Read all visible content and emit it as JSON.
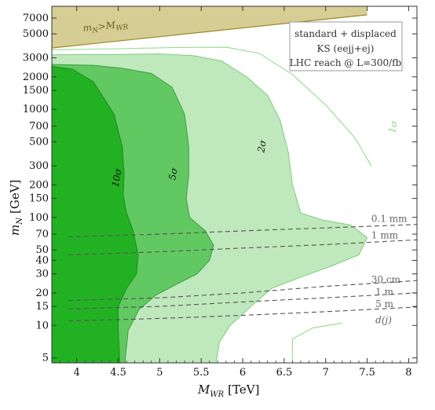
{
  "chart_data": {
    "type": "area",
    "xlabel": "M_WR [TeV]",
    "ylabel": "m_N [GeV]",
    "xlabel_main": "M",
    "xlabel_sub": "WR",
    "xlabel_unit": "[TeV]",
    "ylabel_main": "m",
    "ylabel_sub": "N",
    "ylabel_unit": "[GeV]",
    "xlim": [
      3.7,
      8.1
    ],
    "ylim": [
      4.5,
      9000
    ],
    "y_scale": "log",
    "x_ticks": [
      4,
      4.5,
      5,
      5.5,
      6,
      6.5,
      7,
      7.5,
      8
    ],
    "x_tick_labels": [
      "4",
      "4.5",
      "5",
      "5.5",
      "6",
      "6.5",
      "7",
      "7.5",
      "8"
    ],
    "y_ticks": [
      5,
      10,
      15,
      20,
      30,
      40,
      50,
      70,
      100,
      150,
      200,
      300,
      500,
      700,
      1000,
      1500,
      2000,
      3000,
      5000,
      7000
    ],
    "y_tick_labels": [
      "5",
      "10",
      "15",
      "20",
      "30",
      "40",
      "50",
      "70",
      "100",
      "150",
      "200",
      "300",
      "500",
      "700",
      "1000",
      "1500",
      "2000",
      "3000",
      "5000",
      "7000"
    ],
    "legend": {
      "position": "top-right",
      "lines": [
        "standard + displaced",
        "KS (eejj+ej)",
        "LHC reach @ L=300/fb"
      ]
    },
    "excluded_region": {
      "label": "m_N>M_WR",
      "label_main": "m",
      "label_sub": "N",
      "label_gt": ">M",
      "label_sub2": "WR",
      "color": "#d6cd95",
      "edge_color": "#9a8a2a",
      "boundary": [
        [
          3.7,
          3700
        ],
        [
          7.5,
          7500
        ]
      ]
    },
    "series": [
      {
        "name": "1σ",
        "color": "#9ddd9b",
        "fill": "none",
        "upper": [
          [
            3.7,
            3560
          ],
          [
            4.5,
            3640
          ],
          [
            5.2,
            3740
          ],
          [
            5.8,
            3760
          ],
          [
            6.2,
            3300
          ],
          [
            6.6,
            2100
          ],
          [
            7.0,
            1100
          ],
          [
            7.35,
            550
          ],
          [
            7.55,
            300
          ]
        ],
        "lower": [
          [
            6.6,
            4.6
          ],
          [
            6.6,
            7.5
          ],
          [
            6.85,
            9.5
          ],
          [
            7.2,
            10.5
          ]
        ]
      },
      {
        "name": "2σ",
        "color": "#bfe8bc",
        "edge": "#7fcf7c",
        "boundary": [
          [
            3.7,
            3200
          ],
          [
            4.5,
            3230
          ],
          [
            5.0,
            3260
          ],
          [
            5.4,
            3150
          ],
          [
            5.75,
            2800
          ],
          [
            6.05,
            2000
          ],
          [
            6.3,
            1350
          ],
          [
            6.45,
            800
          ],
          [
            6.55,
            400
          ],
          [
            6.6,
            200
          ],
          [
            6.7,
            110
          ],
          [
            6.95,
            95
          ],
          [
            7.3,
            85
          ],
          [
            7.5,
            65
          ],
          [
            7.4,
            45
          ],
          [
            7.05,
            35
          ],
          [
            6.7,
            28
          ],
          [
            6.35,
            22
          ],
          [
            6.1,
            15
          ],
          [
            5.85,
            10
          ],
          [
            5.72,
            7
          ],
          [
            5.68,
            4.5
          ]
        ]
      },
      {
        "name": "5σ",
        "color": "#62c862",
        "edge": "#3e9e40",
        "boundary": [
          [
            3.7,
            2600
          ],
          [
            4.2,
            2560
          ],
          [
            4.55,
            2400
          ],
          [
            4.9,
            2150
          ],
          [
            5.15,
            1600
          ],
          [
            5.3,
            900
          ],
          [
            5.35,
            450
          ],
          [
            5.35,
            250
          ],
          [
            5.32,
            150
          ],
          [
            5.36,
            100
          ],
          [
            5.55,
            75
          ],
          [
            5.65,
            55
          ],
          [
            5.6,
            40
          ],
          [
            5.45,
            30
          ],
          [
            5.2,
            24
          ],
          [
            4.95,
            19
          ],
          [
            4.75,
            14
          ],
          [
            4.62,
            9
          ],
          [
            4.58,
            4.5
          ]
        ]
      },
      {
        "name": "10σ",
        "color": "#22b122",
        "edge": "#1d8a1d",
        "boundary": [
          [
            3.7,
            2500
          ],
          [
            3.95,
            2350
          ],
          [
            4.2,
            1800
          ],
          [
            4.45,
            900
          ],
          [
            4.55,
            450
          ],
          [
            4.57,
            250
          ],
          [
            4.56,
            160
          ],
          [
            4.6,
            110
          ],
          [
            4.68,
            75
          ],
          [
            4.74,
            45
          ],
          [
            4.72,
            30
          ],
          [
            4.6,
            22
          ],
          [
            4.5,
            15
          ],
          [
            4.5,
            9
          ],
          [
            4.52,
            4.5
          ]
        ]
      }
    ],
    "region_labels": [
      {
        "text": "10σ",
        "x": 4.52,
        "y": 230
      },
      {
        "text": "5σ",
        "x": 5.2,
        "y": 250
      },
      {
        "text": "2σ",
        "x": 6.27,
        "y": 450
      },
      {
        "text": "1σ",
        "x": 7.85,
        "y": 680
      }
    ],
    "decay_length_lines": [
      {
        "label": "0.1 mm",
        "label_x": 7.55,
        "label_y": 88,
        "points": [
          [
            3.9,
            66
          ],
          [
            5.0,
            70
          ],
          [
            6.0,
            75
          ],
          [
            7.0,
            80
          ],
          [
            8.1,
            86
          ]
        ]
      },
      {
        "label": "1 mm",
        "label_x": 7.55,
        "label_y": 62,
        "points": [
          [
            3.9,
            45
          ],
          [
            5.0,
            48
          ],
          [
            6.0,
            52
          ],
          [
            7.0,
            56
          ],
          [
            8.1,
            62
          ]
        ]
      },
      {
        "label": "30 cm",
        "label_x": 7.55,
        "label_y": 24,
        "points": [
          [
            3.9,
            17
          ],
          [
            5.0,
            18
          ],
          [
            6.0,
            20
          ],
          [
            7.0,
            23
          ],
          [
            8.1,
            26
          ]
        ]
      },
      {
        "label": "1 m",
        "label_x": 7.6,
        "label_y": 18.5,
        "points": [
          [
            3.9,
            14.2
          ],
          [
            5.0,
            15
          ],
          [
            6.0,
            16.5
          ],
          [
            7.0,
            18
          ],
          [
            8.1,
            20
          ]
        ]
      },
      {
        "label": "5 m",
        "label_x": 7.6,
        "label_y": 14.3,
        "points": [
          [
            3.9,
            11
          ],
          [
            5.0,
            11.6
          ],
          [
            6.0,
            12.4
          ],
          [
            7.0,
            13.4
          ],
          [
            8.1,
            14.8
          ]
        ]
      }
    ],
    "extra_label": {
      "text": "d(j)",
      "x": 7.6,
      "y": 10.5
    }
  }
}
